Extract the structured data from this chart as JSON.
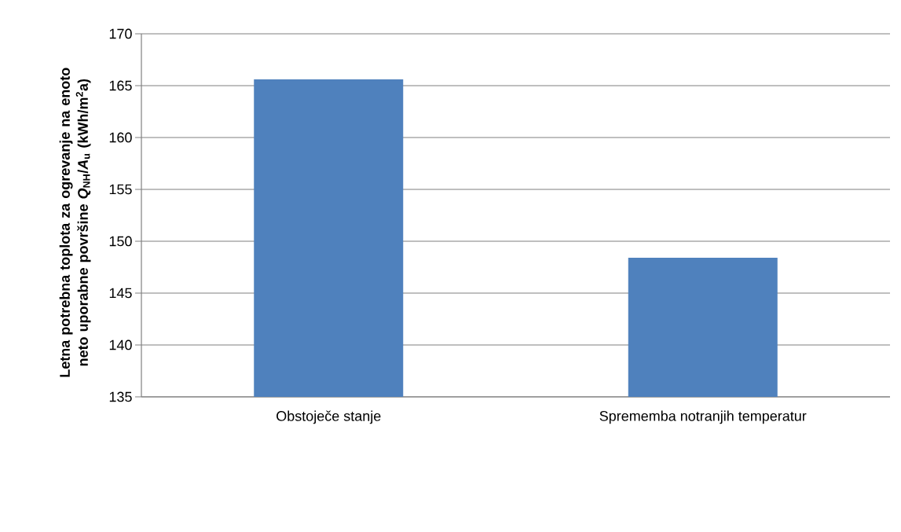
{
  "chart_data": {
    "type": "bar",
    "ylabel": "Letna potrebna toplota za ogrevanje na enoto neto uporabne površine *Q*$_{NH}$/*A*$_{u}$ (kWh/m$^{2}$a)",
    "categories": [
      "Obstoječe stanje",
      "Sprememba notranjih temperatur"
    ],
    "values": [
      165.6,
      148.4
    ],
    "color": "#4f81bd",
    "ylim": [
      135,
      170
    ],
    "yticks": [
      135,
      140,
      145,
      150,
      155,
      160,
      165,
      170
    ],
    "grid": "y"
  }
}
